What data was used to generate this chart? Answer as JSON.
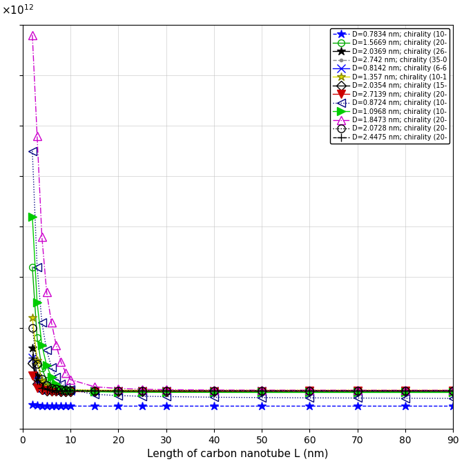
{
  "xlabel": "Length of carbon nanotube L (nm)",
  "xlim": [
    0,
    90
  ],
  "ylim": [
    0,
    8000000000000.0
  ],
  "series": [
    {
      "label": "D=0.7834 nm; chirality (10-",
      "color": "#0000FF",
      "linestyle": "--",
      "marker": "*",
      "markersize": 9,
      "markerfacecolor": "#0000FF",
      "markeredgecolor": "#0000FF",
      "x": [
        2,
        3,
        4,
        5,
        6,
        7,
        8,
        9,
        10,
        15,
        20,
        25,
        30,
        40,
        50,
        60,
        70,
        80,
        90
      ],
      "y": [
        470000000000.0,
        460000000000.0,
        455000000000.0,
        452000000000.0,
        450000000000.0,
        449000000000.0,
        448000000000.0,
        447000000000.0,
        447000000000.0,
        446000000000.0,
        446000000000.0,
        446000000000.0,
        446000000000.0,
        446000000000.0,
        446000000000.0,
        446000000000.0,
        446000000000.0,
        446000000000.0,
        446000000000.0
      ]
    },
    {
      "label": "D=1.5669 nm; chirality (20-",
      "color": "#00AA00",
      "linestyle": "-",
      "marker": "o",
      "markersize": 7,
      "markerfacecolor": "none",
      "markeredgecolor": "#00AA00",
      "x": [
        2,
        3,
        4,
        5,
        6,
        7,
        8,
        9,
        10,
        15,
        20,
        25,
        30,
        40,
        50,
        60,
        70,
        80,
        90
      ],
      "y": [
        3200000000000.0,
        1800000000000.0,
        1200000000000.0,
        950000000000.0,
        840000000000.0,
        800000000000.0,
        780000000000.0,
        770000000000.0,
        765000000000.0,
        750000000000.0,
        745000000000.0,
        742000000000.0,
        741000000000.0,
        740000000000.0,
        740000000000.0,
        740000000000.0,
        740000000000.0,
        740000000000.0,
        740000000000.0
      ]
    },
    {
      "label": "D=2.0369 nm; chirality (26-",
      "color": "#000000",
      "linestyle": "-",
      "marker": "*",
      "markersize": 9,
      "markerfacecolor": "#000000",
      "markeredgecolor": "#000000",
      "x": [
        2,
        3,
        4,
        5,
        6,
        7,
        8,
        9,
        10,
        15,
        20,
        25,
        30,
        40,
        50,
        60,
        70,
        80,
        90
      ],
      "y": [
        1600000000000.0,
        1050000000000.0,
        840000000000.0,
        780000000000.0,
        765000000000.0,
        758000000000.0,
        754000000000.0,
        752000000000.0,
        750000000000.0,
        747000000000.0,
        746000000000.0,
        746000000000.0,
        746000000000.0,
        746000000000.0,
        746000000000.0,
        746000000000.0,
        746000000000.0,
        746000000000.0,
        746000000000.0
      ]
    },
    {
      "label": "D=2.742 nm; chirality (35-0",
      "color": "#888888",
      "linestyle": "--",
      "marker": ".",
      "markersize": 6,
      "markerfacecolor": "#888888",
      "markeredgecolor": "#888888",
      "x": [
        2,
        3,
        4,
        5,
        6,
        7,
        8,
        9,
        10,
        15,
        20,
        25,
        30,
        40,
        50,
        60,
        70,
        80,
        90
      ],
      "y": [
        1100000000000.0,
        820000000000.0,
        760000000000.0,
        748000000000.0,
        743000000000.0,
        741000000000.0,
        740000000000.0,
        739000000000.0,
        739000000000.0,
        738000000000.0,
        738000000000.0,
        738000000000.0,
        738000000000.0,
        738000000000.0,
        738000000000.0,
        738000000000.0,
        738000000000.0,
        738000000000.0,
        738000000000.0
      ]
    },
    {
      "label": "D=0.8142 nm; chirality (6-6",
      "color": "#0000FF",
      "linestyle": "-",
      "marker": "x",
      "markersize": 8,
      "markerfacecolor": "#0000FF",
      "markeredgecolor": "#0000FF",
      "x": [
        2,
        3,
        4,
        5,
        6,
        7,
        8,
        9,
        10,
        15,
        20,
        25,
        30,
        40,
        50,
        60,
        70,
        80,
        90
      ],
      "y": [
        1400000000000.0,
        950000000000.0,
        800000000000.0,
        768000000000.0,
        758000000000.0,
        753000000000.0,
        750000000000.0,
        749000000000.0,
        748000000000.0,
        747000000000.0,
        747000000000.0,
        747000000000.0,
        747000000000.0,
        747000000000.0,
        747000000000.0,
        747000000000.0,
        747000000000.0,
        747000000000.0,
        747000000000.0
      ]
    },
    {
      "label": "D=1.357 nm; chirality (10-1",
      "color": "#DDDD00",
      "linestyle": "-",
      "marker": "*",
      "markersize": 9,
      "markerfacecolor": "#DDDD00",
      "markeredgecolor": "#888800",
      "x": [
        2,
        3,
        4,
        5,
        6,
        7,
        8,
        9,
        10,
        15,
        20,
        25,
        30,
        40,
        50,
        60,
        70,
        80,
        90
      ],
      "y": [
        2200000000000.0,
        1350000000000.0,
        960000000000.0,
        840000000000.0,
        800000000000.0,
        780000000000.0,
        775000000000.0,
        770000000000.0,
        768000000000.0,
        762000000000.0,
        760000000000.0,
        760000000000.0,
        760000000000.0,
        760000000000.0,
        760000000000.0,
        760000000000.0,
        760000000000.0,
        760000000000.0,
        760000000000.0
      ]
    },
    {
      "label": "D=2.0354 nm; chirality (15-",
      "color": "#000000",
      "linestyle": "-",
      "marker": "D",
      "markersize": 7,
      "markerfacecolor": "none",
      "markeredgecolor": "#000000",
      "x": [
        2,
        3,
        4,
        5,
        6,
        7,
        8,
        9,
        10,
        15,
        20,
        25,
        30,
        40,
        50,
        60,
        70,
        80,
        90
      ],
      "y": [
        1300000000000.0,
        880000000000.0,
        770000000000.0,
        752000000000.0,
        746000000000.0,
        743000000000.0,
        741000000000.0,
        740000000000.0,
        740000000000.0,
        739000000000.0,
        739000000000.0,
        739000000000.0,
        739000000000.0,
        739000000000.0,
        739000000000.0,
        739000000000.0,
        739000000000.0,
        739000000000.0,
        739000000000.0
      ]
    },
    {
      "label": "D=2.7139 nm; chirality (20-",
      "color": "#CC0000",
      "linestyle": "-",
      "marker": "v",
      "markersize": 8,
      "markerfacecolor": "#CC0000",
      "markeredgecolor": "#CC0000",
      "x": [
        2,
        3,
        4,
        5,
        6,
        7,
        8,
        9,
        10,
        15,
        20,
        25,
        30,
        40,
        50,
        60,
        70,
        80,
        90
      ],
      "y": [
        1050000000000.0,
        800000000000.0,
        757000000000.0,
        745000000000.0,
        741000000000.0,
        739000000000.0,
        739000000000.0,
        738000000000.0,
        738000000000.0,
        737000000000.0,
        737000000000.0,
        737000000000.0,
        737000000000.0,
        740000000000.0,
        742000000000.0,
        745000000000.0,
        748000000000.0,
        750000000000.0,
        752000000000.0
      ]
    },
    {
      "label": "D=0.8724 nm; chirality (10-",
      "color": "#000080",
      "linestyle": ":",
      "marker": "<",
      "markersize": 8,
      "markerfacecolor": "none",
      "markeredgecolor": "#000080",
      "x": [
        2,
        3,
        4,
        5,
        6,
        7,
        8,
        9,
        10,
        15,
        20,
        25,
        30,
        40,
        50,
        60,
        70,
        80,
        90
      ],
      "y": [
        5500000000000.0,
        3200000000000.0,
        2100000000000.0,
        1550000000000.0,
        1220000000000.0,
        1020000000000.0,
        890000000000.0,
        820000000000.0,
        770000000000.0,
        680000000000.0,
        655000000000.0,
        642000000000.0,
        635000000000.0,
        622000000000.0,
        615000000000.0,
        610000000000.0,
        606000000000.0,
        603000000000.0,
        600000000000.0
      ]
    },
    {
      "label": "D=1.0968 nm; chirality (10-",
      "color": "#00CC00",
      "linestyle": "-",
      "marker": ">",
      "markersize": 8,
      "markerfacecolor": "#00CC00",
      "markeredgecolor": "#00CC00",
      "x": [
        2,
        3,
        4,
        5,
        6,
        7,
        8,
        9,
        10,
        15,
        20,
        25,
        30,
        40,
        50,
        60,
        70,
        80,
        90
      ],
      "y": [
        4200000000000.0,
        2500000000000.0,
        1650000000000.0,
        1250000000000.0,
        1020000000000.0,
        890000000000.0,
        820000000000.0,
        780000000000.0,
        760000000000.0,
        730000000000.0,
        722000000000.0,
        720000000000.0,
        718000000000.0,
        717000000000.0,
        716000000000.0,
        716000000000.0,
        716000000000.0,
        716000000000.0,
        716000000000.0
      ]
    },
    {
      "label": "D=1.8473 nm; chirality (20-",
      "color": "#CC00CC",
      "linestyle": "-.",
      "marker": "^",
      "markersize": 8,
      "markerfacecolor": "none",
      "markeredgecolor": "#CC00CC",
      "x": [
        2,
        3,
        4,
        5,
        6,
        7,
        8,
        9,
        10,
        15,
        20,
        25,
        30,
        40,
        50,
        60,
        70,
        80,
        90
      ],
      "y": [
        7800000000000.0,
        5800000000000.0,
        3800000000000.0,
        2700000000000.0,
        2100000000000.0,
        1650000000000.0,
        1320000000000.0,
        1100000000000.0,
        970000000000.0,
        830000000000.0,
        795000000000.0,
        780000000000.0,
        772000000000.0,
        765000000000.0,
        762000000000.0,
        761000000000.0,
        760000000000.0,
        760000000000.0,
        760000000000.0
      ]
    },
    {
      "label": "D=2.0728 nm; chirality (20-",
      "color": "#000000",
      "linestyle": ":",
      "marker": "o",
      "markersize": 8,
      "markerfacecolor": "none",
      "markeredgecolor": "#000000",
      "x": [
        2,
        3,
        4,
        5,
        6,
        7,
        8,
        9,
        10,
        15,
        20,
        25,
        30,
        40,
        50,
        60,
        70,
        80,
        90
      ],
      "y": [
        2000000000000.0,
        1280000000000.0,
        980000000000.0,
        860000000000.0,
        810000000000.0,
        790000000000.0,
        775000000000.0,
        768000000000.0,
        763000000000.0,
        756000000000.0,
        753000000000.0,
        752000000000.0,
        752000000000.0,
        752000000000.0,
        752000000000.0,
        752000000000.0,
        752000000000.0,
        752000000000.0,
        752000000000.0
      ]
    },
    {
      "label": "D=2.4475 nm; chirality (20-",
      "color": "#000000",
      "linestyle": "--",
      "marker": "+",
      "markersize": 8,
      "markerfacecolor": "#000000",
      "markeredgecolor": "#000000",
      "x": [
        2,
        3,
        4,
        5,
        6,
        7,
        8,
        9,
        10,
        15,
        20,
        25,
        30,
        40,
        50,
        60,
        70,
        80,
        90
      ],
      "y": [
        1400000000000.0,
        960000000000.0,
        810000000000.0,
        772000000000.0,
        760000000000.0,
        754000000000.0,
        751000000000.0,
        749000000000.0,
        748000000000.0,
        746000000000.0,
        745000000000.0,
        745000000000.0,
        745000000000.0,
        745000000000.0,
        745000000000.0,
        745000000000.0,
        745000000000.0,
        745000000000.0,
        745000000000.0
      ]
    }
  ]
}
